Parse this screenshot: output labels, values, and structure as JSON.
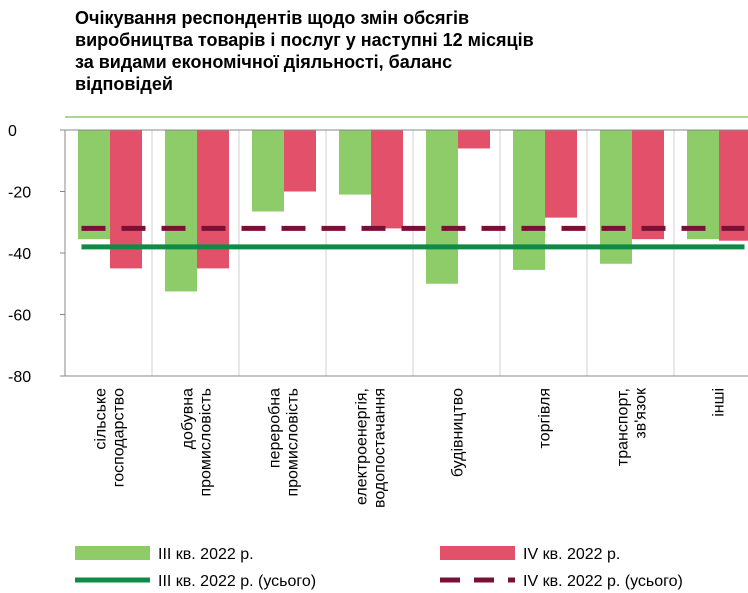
{
  "chart_data": {
    "type": "bar",
    "title": [
      "Очікування респондентів щодо змін обсягів",
      "виробництва товарів і послуг у наступні 12 місяців",
      "за видами економічної діяльності, баланс",
      "відповідей"
    ],
    "categories": [
      [
        "сільське",
        "господарство"
      ],
      [
        "добувна",
        "промисловість"
      ],
      [
        "переробна",
        "промисловість"
      ],
      [
        "електроенергія,",
        "водопостачання"
      ],
      [
        "будівництво"
      ],
      [
        "торгівля"
      ],
      [
        "транспорт,",
        "зв'язок"
      ],
      [
        "інші"
      ]
    ],
    "series": [
      {
        "name": "ІІІ кв. 2022 р.",
        "color": "#8dcc68",
        "values": [
          -35.5,
          -52.5,
          -26.5,
          -21,
          -50,
          -45.5,
          -43.5,
          -35.5
        ]
      },
      {
        "name": "ІV кв. 2022 р.",
        "color": "#e3506a",
        "values": [
          -45,
          -45,
          -20,
          -32,
          -6,
          -28.5,
          -35.5,
          -36
        ]
      }
    ],
    "lines": [
      {
        "name": "ІІІ кв. 2022 р. (усього)",
        "color": "#0f8a47",
        "value": -38,
        "style": "solid"
      },
      {
        "name": "ІV кв. 2022 р. (усього)",
        "color": "#7a1038",
        "value": -32,
        "style": "dashed"
      }
    ],
    "ylim": [
      -80,
      0
    ],
    "yticks": [
      0,
      -20,
      -40,
      -60,
      -80
    ]
  }
}
